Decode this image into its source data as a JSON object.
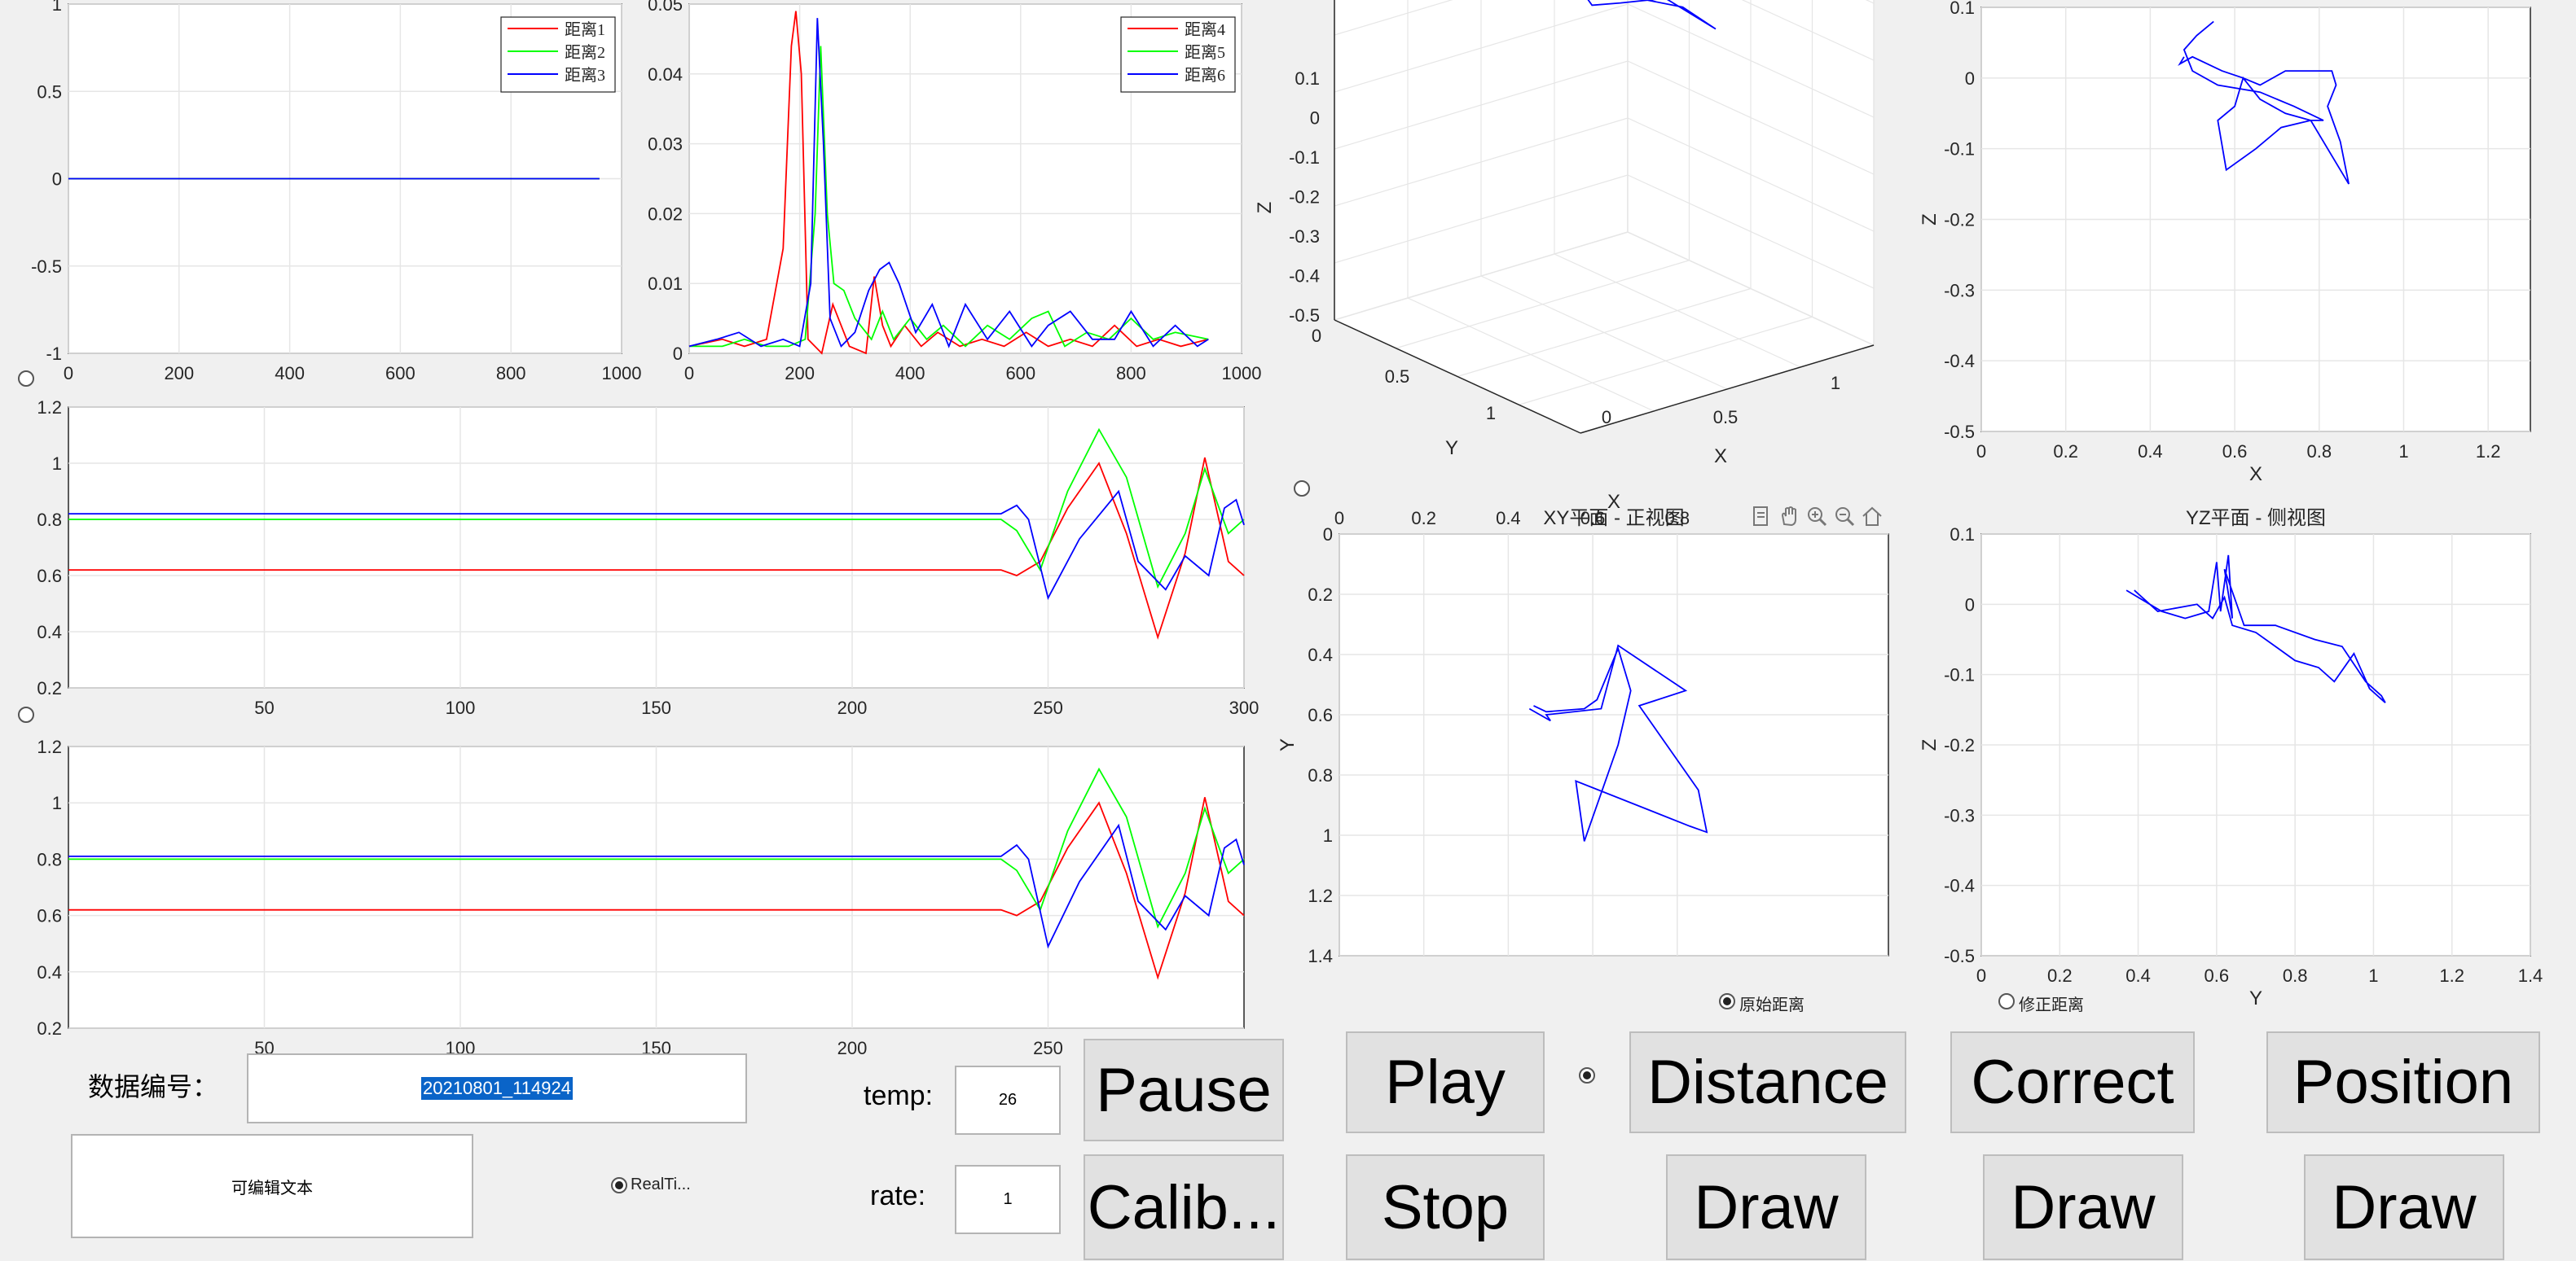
{
  "colors": {
    "red": "#ff0000",
    "green": "#00ff00",
    "blue": "#0000ff",
    "grid": "#e6e6e6",
    "axis": "#262626"
  },
  "chart_data": [
    {
      "id": "top-left",
      "type": "line",
      "title": "",
      "xlim": [
        0,
        1000
      ],
      "ylim": [
        -1,
        1
      ],
      "xticks": [
        "0",
        "200",
        "400",
        "600",
        "800",
        "1000"
      ],
      "yticks": [
        "-1",
        "-0.5",
        "0",
        "0.5",
        "1"
      ],
      "legend": "top-right",
      "series": [
        {
          "name": "距离1",
          "color": "red",
          "x": [
            0,
            960
          ],
          "y": [
            0,
            0
          ]
        },
        {
          "name": "距离2",
          "color": "green",
          "x": [
            0,
            960
          ],
          "y": [
            0,
            0
          ]
        },
        {
          "name": "距离3",
          "color": "blue",
          "x": [
            0,
            960
          ],
          "y": [
            0,
            0
          ]
        }
      ]
    },
    {
      "id": "top-mid",
      "type": "line",
      "title": "",
      "xlim": [
        0,
        1000
      ],
      "ylim": [
        0,
        0.05
      ],
      "xticks": [
        "0",
        "200",
        "400",
        "600",
        "800",
        "1000"
      ],
      "yticks": [
        "0",
        "0.01",
        "0.02",
        "0.03",
        "0.04",
        "0.05"
      ],
      "legend": "top-right",
      "series": [
        {
          "name": "距离4",
          "color": "red",
          "x": [
            0,
            60,
            100,
            140,
            170,
            185,
            193,
            203,
            215,
            240,
            260,
            290,
            320,
            335,
            350,
            365,
            390,
            420,
            450,
            490,
            530,
            570,
            610,
            650,
            690,
            730,
            770,
            810,
            850,
            890,
            940
          ],
          "y": [
            0.001,
            0.002,
            0.001,
            0.002,
            0.015,
            0.044,
            0.049,
            0.04,
            0.002,
            0.0,
            0.007,
            0.001,
            0.0,
            0.011,
            0.004,
            0.001,
            0.004,
            0.001,
            0.003,
            0.001,
            0.002,
            0.001,
            0.003,
            0.001,
            0.002,
            0.001,
            0.004,
            0.001,
            0.002,
            0.001,
            0.002
          ]
        },
        {
          "name": "距离5",
          "color": "green",
          "x": [
            0,
            60,
            100,
            140,
            180,
            210,
            228,
            238,
            250,
            262,
            280,
            300,
            330,
            350,
            370,
            400,
            430,
            460,
            500,
            540,
            580,
            620,
            650,
            680,
            720,
            760,
            800,
            840,
            880,
            940
          ],
          "y": [
            0.001,
            0.001,
            0.002,
            0.001,
            0.001,
            0.002,
            0.02,
            0.044,
            0.02,
            0.01,
            0.009,
            0.005,
            0.002,
            0.006,
            0.002,
            0.005,
            0.002,
            0.004,
            0.001,
            0.004,
            0.002,
            0.005,
            0.006,
            0.001,
            0.003,
            0.002,
            0.005,
            0.002,
            0.003,
            0.002
          ]
        },
        {
          "name": "距离6",
          "color": "blue",
          "x": [
            0,
            50,
            90,
            130,
            170,
            200,
            220,
            232,
            243,
            255,
            275,
            300,
            325,
            345,
            362,
            380,
            410,
            440,
            470,
            500,
            540,
            580,
            620,
            650,
            690,
            730,
            770,
            800,
            840,
            880,
            920,
            940
          ],
          "y": [
            0.001,
            0.002,
            0.003,
            0.001,
            0.002,
            0.001,
            0.01,
            0.048,
            0.03,
            0.005,
            0.001,
            0.003,
            0.009,
            0.012,
            0.013,
            0.01,
            0.003,
            0.007,
            0.001,
            0.007,
            0.002,
            0.006,
            0.001,
            0.004,
            0.006,
            0.002,
            0.002,
            0.006,
            0.001,
            0.004,
            0.001,
            0.002
          ]
        }
      ]
    },
    {
      "id": "mid-left",
      "type": "line",
      "title": "",
      "xlim": [
        0,
        300
      ],
      "ylim": [
        0.2,
        1.2
      ],
      "xticks": [
        "50",
        "100",
        "150",
        "200",
        "250",
        "300"
      ],
      "yticks": [
        "0.2",
        "0.4",
        "0.6",
        "0.8",
        "1",
        "1.2"
      ],
      "series": [
        {
          "name": "",
          "color": "red",
          "x": [
            0,
            238,
            242,
            248,
            255,
            263,
            270,
            278,
            285,
            290,
            296,
            300
          ],
          "y": [
            0.62,
            0.62,
            0.6,
            0.65,
            0.84,
            1.0,
            0.75,
            0.38,
            0.68,
            1.02,
            0.65,
            0.6
          ]
        },
        {
          "name": "",
          "color": "green",
          "x": [
            0,
            238,
            242,
            248,
            255,
            263,
            270,
            278,
            285,
            290,
            296,
            300
          ],
          "y": [
            0.8,
            0.8,
            0.76,
            0.62,
            0.9,
            1.12,
            0.95,
            0.56,
            0.75,
            0.98,
            0.75,
            0.8
          ]
        },
        {
          "name": "",
          "color": "blue",
          "x": [
            0,
            238,
            242,
            245,
            250,
            258,
            268,
            273,
            280,
            285,
            291,
            295,
            298,
            300
          ],
          "y": [
            0.82,
            0.82,
            0.85,
            0.8,
            0.52,
            0.73,
            0.9,
            0.65,
            0.55,
            0.67,
            0.6,
            0.84,
            0.87,
            0.78
          ]
        }
      ]
    },
    {
      "id": "bottom-left",
      "type": "line",
      "title": "",
      "xlim": [
        0,
        300
      ],
      "ylim": [
        0.2,
        1.2
      ],
      "xticks": [
        "50",
        "100",
        "150",
        "200",
        "250"
      ],
      "yticks": [
        "0.2",
        "0.4",
        "0.6",
        "0.8",
        "1",
        "1.2"
      ],
      "series": [
        {
          "name": "",
          "color": "red",
          "x": [
            0,
            238,
            242,
            248,
            255,
            263,
            270,
            278,
            285,
            290,
            296,
            300
          ],
          "y": [
            0.62,
            0.62,
            0.6,
            0.65,
            0.84,
            1.0,
            0.75,
            0.38,
            0.68,
            1.02,
            0.65,
            0.6
          ]
        },
        {
          "name": "",
          "color": "green",
          "x": [
            0,
            238,
            242,
            248,
            255,
            263,
            270,
            278,
            285,
            290,
            296,
            300
          ],
          "y": [
            0.8,
            0.8,
            0.76,
            0.62,
            0.9,
            1.12,
            0.95,
            0.56,
            0.75,
            0.98,
            0.75,
            0.8
          ]
        },
        {
          "name": "",
          "color": "blue",
          "x": [
            0,
            238,
            242,
            245,
            250,
            258,
            268,
            273,
            280,
            285,
            291,
            295,
            298,
            300
          ],
          "y": [
            0.81,
            0.81,
            0.85,
            0.8,
            0.49,
            0.72,
            0.92,
            0.65,
            0.55,
            0.67,
            0.6,
            0.84,
            0.87,
            0.78
          ]
        }
      ]
    },
    {
      "id": "xy-plane",
      "type": "line",
      "title": "XY平面 - 正视图",
      "xlabel": "X",
      "ylabel": "Y",
      "xlim": [
        0,
        1.3
      ],
      "ylim": [
        0,
        1.4
      ],
      "yreverse": true,
      "xaxis": "top",
      "xticks": [
        "0",
        "0.2",
        "0.4",
        "0.6",
        "0.8"
      ],
      "yticks": [
        "0",
        "0.2",
        "0.4",
        "0.6",
        "0.8",
        "1",
        "1.2",
        "1.4"
      ],
      "series": [
        {
          "name": "",
          "color": "blue",
          "x": [
            0.45,
            0.5,
            0.49,
            0.62,
            0.66,
            0.82,
            0.71,
            0.85,
            0.87,
            0.83,
            0.56,
            0.58,
            0.66,
            0.69,
            0.66,
            0.61,
            0.58,
            0.49,
            0.46
          ],
          "y": [
            0.58,
            0.62,
            0.6,
            0.58,
            0.37,
            0.52,
            0.57,
            0.85,
            0.99,
            0.97,
            0.82,
            1.02,
            0.7,
            0.52,
            0.38,
            0.55,
            0.58,
            0.59,
            0.57
          ]
        }
      ]
    },
    {
      "id": "yz-plane",
      "type": "line",
      "title": "YZ平面 - 侧视图",
      "xlabel": "Y",
      "ylabel": "Z",
      "xlim": [
        0,
        1.4
      ],
      "ylim": [
        -0.5,
        0.1
      ],
      "xticks": [
        "0",
        "0.2",
        "0.4",
        "0.6",
        "0.8",
        "1",
        "1.2",
        "1.4"
      ],
      "yticks": [
        "-0.5",
        "-0.4",
        "-0.3",
        "-0.2",
        "-0.1",
        "0",
        "0.1"
      ],
      "series": [
        {
          "name": "",
          "color": "blue",
          "x": [
            0.37,
            0.46,
            0.52,
            0.58,
            0.6,
            0.61,
            0.63,
            0.64,
            0.62,
            0.67,
            0.75,
            0.85,
            0.92,
            0.98,
            1.02,
            1.03,
            0.99,
            0.95,
            0.9,
            0.86,
            0.8,
            0.75,
            0.7,
            0.64,
            0.62,
            0.59,
            0.55,
            0.45,
            0.39
          ],
          "y": [
            0.02,
            -0.01,
            -0.02,
            -0.01,
            0.06,
            -0.01,
            0.07,
            -0.02,
            0.05,
            -0.03,
            -0.03,
            -0.05,
            -0.06,
            -0.11,
            -0.13,
            -0.14,
            -0.12,
            -0.07,
            -0.11,
            -0.09,
            -0.08,
            -0.06,
            -0.04,
            -0.03,
            0.01,
            -0.02,
            0.0,
            -0.01,
            0.02
          ]
        }
      ]
    },
    {
      "id": "xz-plane",
      "type": "line",
      "title": "",
      "xlabel": "X",
      "ylabel": "Z",
      "xlim": [
        0,
        1.3
      ],
      "ylim": [
        -0.5,
        0.1
      ],
      "xticks": [
        "0",
        "0.2",
        "0.4",
        "0.6",
        "0.8",
        "1",
        "1.2"
      ],
      "yticks": [
        "-0.5",
        "-0.4",
        "-0.3",
        "-0.2",
        "-0.1",
        "0",
        "0.1"
      ],
      "series": [
        {
          "name": "",
          "color": "blue",
          "x": [
            0.48,
            0.47,
            0.5,
            0.57,
            0.62,
            0.66,
            0.72,
            0.83,
            0.84,
            0.82,
            0.85,
            0.87,
            0.83,
            0.78,
            0.72,
            0.66,
            0.62,
            0.6,
            0.56,
            0.58,
            0.65,
            0.71,
            0.78,
            0.81,
            0.74,
            0.66,
            0.56,
            0.5,
            0.48,
            0.51,
            0.55
          ],
          "y": [
            0.03,
            0.02,
            0.03,
            0.01,
            0.0,
            -0.01,
            0.01,
            0.01,
            -0.01,
            -0.04,
            -0.09,
            -0.15,
            -0.11,
            -0.06,
            -0.05,
            -0.03,
            0.0,
            -0.04,
            -0.06,
            -0.13,
            -0.1,
            -0.07,
            -0.06,
            -0.06,
            -0.04,
            -0.02,
            -0.01,
            0.01,
            0.04,
            0.06,
            0.08
          ]
        }
      ]
    },
    {
      "id": "plot-3d",
      "type": "line",
      "title": "",
      "xlabel": "X",
      "ylabel": "Y",
      "zlabel": "Z",
      "zticks": [
        "0.1",
        "0",
        "-0.1",
        "-0.2",
        "-0.3",
        "-0.4",
        "-0.5"
      ],
      "yticks": [
        "0",
        "0.5",
        "1"
      ],
      "xticks": [
        "0",
        "0.5",
        "1"
      ],
      "series": [
        {
          "name": "",
          "color": "blue",
          "x": [
            0.48,
            0.5,
            0.57,
            0.66,
            0.72,
            0.83,
            0.85,
            0.87,
            0.78,
            0.66,
            0.6,
            0.58,
            0.65,
            0.78,
            0.81,
            0.66,
            0.5,
            0.48
          ],
          "y": [
            0.58,
            0.62,
            0.58,
            0.37,
            0.52,
            0.57,
            0.85,
            0.99,
            0.97,
            0.82,
            1.02,
            0.7,
            0.52,
            0.38,
            0.55,
            0.58,
            0.59,
            0.57
          ],
          "z": [
            0.02,
            0.0,
            -0.01,
            0.06,
            -0.02,
            -0.05,
            -0.11,
            -0.14,
            -0.08,
            -0.04,
            -0.03,
            0.01,
            0.0,
            -0.06,
            -0.06,
            -0.03,
            -0.01,
            0.02
          ]
        }
      ]
    }
  ],
  "toolbar": {
    "icons": [
      "export-icon",
      "pan-icon",
      "zoom-in-icon",
      "zoom-out-icon",
      "home-icon"
    ]
  },
  "labels": {
    "data_id": "数据编号：",
    "temp": "temp:",
    "rate": "rate:",
    "radio_raw": "原始距离",
    "radio_corrected": "修正距离",
    "radio_realtime": "RealTi..."
  },
  "inputs": {
    "data_id_value": "20210801_114924",
    "temp_value": "26",
    "rate_value": "1",
    "editable_text": "可编辑文本"
  },
  "buttons": {
    "pause": "Pause",
    "play": "Play",
    "distance": "Distance",
    "correct": "Correct",
    "position": "Position",
    "calib": "Calib...",
    "stop": "Stop",
    "draw1": "Draw",
    "draw2": "Draw",
    "draw3": "Draw"
  }
}
